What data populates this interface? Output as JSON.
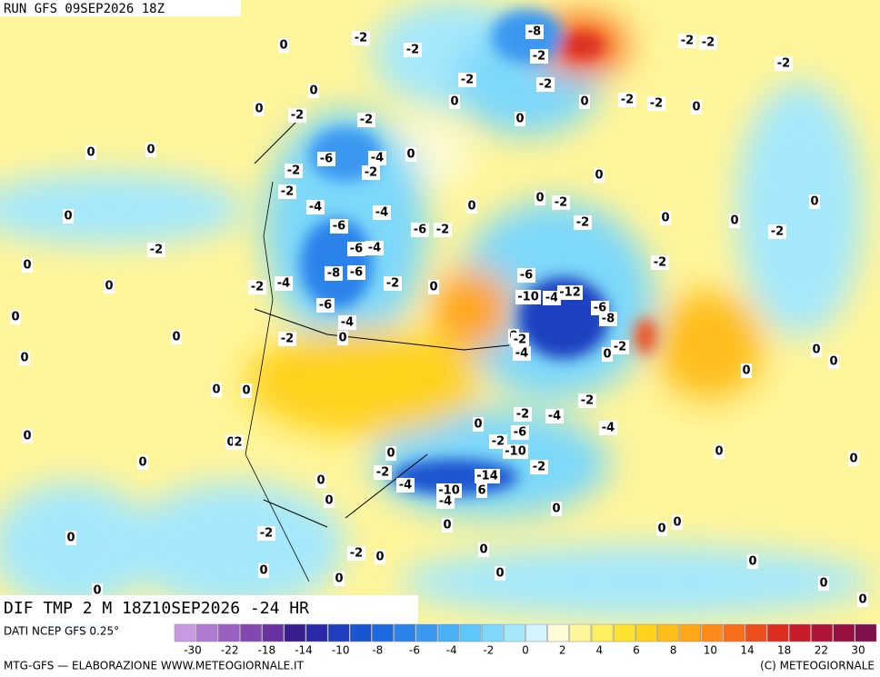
{
  "header": {
    "run": "RUN GFS 09SEP2026 18Z"
  },
  "field": {
    "title": "DIF TMP 2 M 18Z10SEP2026 -24 HR"
  },
  "legend": {
    "source": "DATI NCEP GFS 0.25°",
    "colors": [
      "#c89be0",
      "#b07ad0",
      "#9a5fc0",
      "#8348b0",
      "#6a32a0",
      "#3a1d8f",
      "#2a2aa8",
      "#1f3fc0",
      "#1a55d0",
      "#1d6ae0",
      "#2a82ea",
      "#3b98f0",
      "#4ab0f5",
      "#5ec6f8",
      "#7dd8fa",
      "#a5e8fc",
      "#d2f4fc",
      "#fdfbd6",
      "#fff59a",
      "#ffee60",
      "#ffe330",
      "#ffd21e",
      "#ffbe1a",
      "#ffa61a",
      "#ff8c1a",
      "#f76e1a",
      "#ec4e1c",
      "#dc2e20",
      "#c81c2a",
      "#b01436",
      "#981040",
      "#80104a"
    ],
    "ticks": [
      -30,
      -22,
      -18,
      -14,
      -10,
      -8,
      -6,
      -4,
      -2,
      0,
      2,
      4,
      6,
      8,
      10,
      14,
      18,
      22,
      30
    ]
  },
  "footer": {
    "credit": "MTG-GFS — ELABORAZIONE WWW.METEOGIORNALE.IT",
    "copyright": "(C) METEOGIORNALE"
  },
  "map": {
    "labels": [
      -2,
      0,
      -2,
      -8,
      -2,
      -2,
      -2,
      -2,
      -2,
      -2,
      0,
      0,
      -2,
      -2,
      0,
      0,
      -2,
      -2,
      0,
      0,
      0,
      0,
      -6,
      -4,
      0,
      -2,
      -2,
      0,
      -2,
      0,
      -2,
      0,
      -4,
      -4,
      0,
      0,
      0,
      0,
      -6,
      -6,
      -2,
      -2,
      -2,
      -2,
      -6,
      -4,
      0,
      -8,
      -6,
      -2,
      0,
      -2,
      -4,
      0,
      -6,
      -10,
      -4,
      -12,
      -2,
      -6,
      -6,
      -8,
      0,
      -4,
      0,
      -2,
      0,
      0,
      -2,
      -2,
      0,
      -4,
      0,
      0,
      0,
      0,
      0,
      0,
      -2,
      -4,
      -2,
      -4,
      0,
      -6,
      -2,
      -10,
      0,
      0,
      2,
      0,
      0,
      0,
      0,
      -2,
      -2,
      -14,
      0,
      -4,
      -10,
      -4,
      6,
      0,
      0,
      0,
      0,
      0,
      -2,
      0,
      0,
      -2,
      0,
      0,
      0,
      0,
      0,
      0,
      0,
      0
    ]
  }
}
